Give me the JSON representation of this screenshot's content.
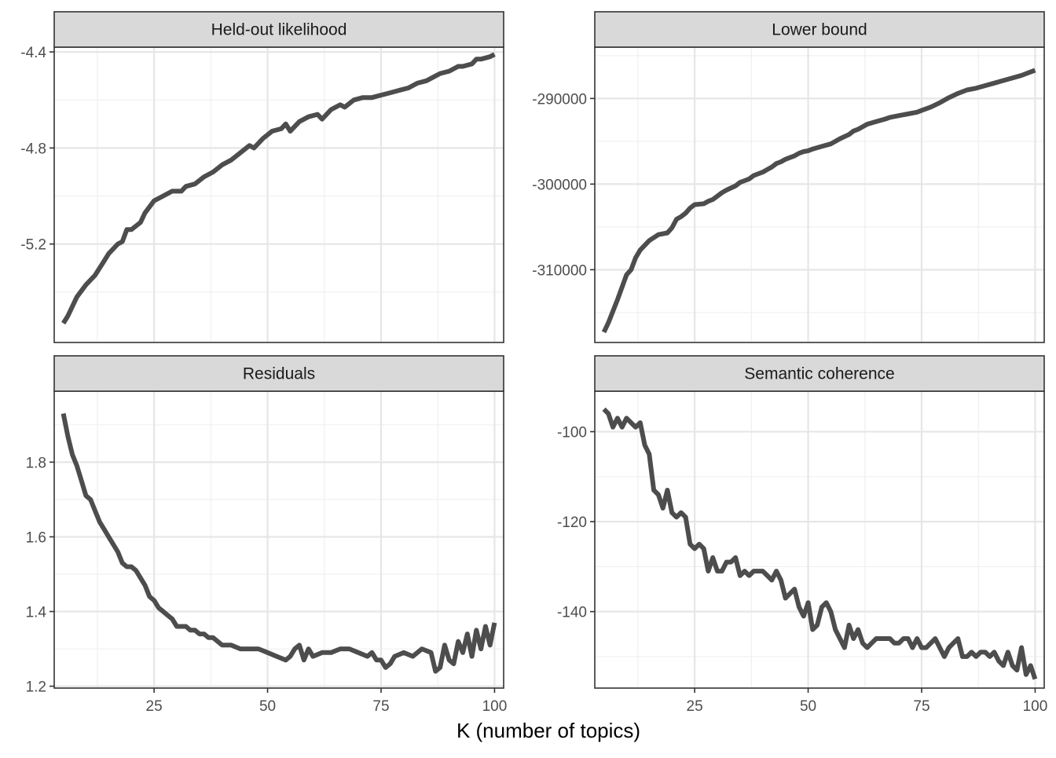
{
  "chart_data": {
    "type": "line",
    "facet_layout": "2x2",
    "xlabel": "K (number of topics)",
    "xlim": [
      3,
      102
    ],
    "x_ticks": [
      25,
      50,
      75,
      100
    ],
    "grid": true,
    "line_color": "#4d4d4d",
    "strip_fill": "#d9d9d9",
    "panels": [
      {
        "name": "Held-out likelihood",
        "ylim": [
          -5.61,
          -4.38
        ],
        "y_ticks": [
          -5.2,
          -4.8,
          -4.4
        ],
        "y_tick_labels": [
          "-5.2",
          "-4.8",
          "-4.4"
        ],
        "points": [
          [
            5,
            -5.53
          ],
          [
            6,
            -5.5
          ],
          [
            7,
            -5.46
          ],
          [
            8,
            -5.42
          ],
          [
            10,
            -5.37
          ],
          [
            12,
            -5.33
          ],
          [
            14,
            -5.27
          ],
          [
            15,
            -5.24
          ],
          [
            17,
            -5.2
          ],
          [
            18,
            -5.19
          ],
          [
            19,
            -5.14
          ],
          [
            20,
            -5.14
          ],
          [
            22,
            -5.11
          ],
          [
            23,
            -5.07
          ],
          [
            25,
            -5.02
          ],
          [
            27,
            -5.0
          ],
          [
            29,
            -4.98
          ],
          [
            31,
            -4.98
          ],
          [
            32,
            -4.96
          ],
          [
            34,
            -4.95
          ],
          [
            36,
            -4.92
          ],
          [
            38,
            -4.9
          ],
          [
            40,
            -4.87
          ],
          [
            42,
            -4.85
          ],
          [
            44,
            -4.82
          ],
          [
            46,
            -4.79
          ],
          [
            47,
            -4.8
          ],
          [
            49,
            -4.76
          ],
          [
            51,
            -4.73
          ],
          [
            53,
            -4.72
          ],
          [
            54,
            -4.7
          ],
          [
            55,
            -4.73
          ],
          [
            57,
            -4.69
          ],
          [
            59,
            -4.67
          ],
          [
            61,
            -4.66
          ],
          [
            62,
            -4.68
          ],
          [
            64,
            -4.64
          ],
          [
            66,
            -4.62
          ],
          [
            67,
            -4.63
          ],
          [
            69,
            -4.6
          ],
          [
            71,
            -4.59
          ],
          [
            73,
            -4.59
          ],
          [
            75,
            -4.58
          ],
          [
            77,
            -4.57
          ],
          [
            79,
            -4.56
          ],
          [
            81,
            -4.55
          ],
          [
            83,
            -4.53
          ],
          [
            85,
            -4.52
          ],
          [
            87,
            -4.5
          ],
          [
            88,
            -4.49
          ],
          [
            90,
            -4.48
          ],
          [
            92,
            -4.46
          ],
          [
            93,
            -4.46
          ],
          [
            95,
            -4.45
          ],
          [
            96,
            -4.43
          ],
          [
            97,
            -4.43
          ],
          [
            99,
            -4.42
          ],
          [
            100,
            -4.41
          ]
        ]
      },
      {
        "name": "Lower bound",
        "ylim": [
          -318500,
          -284000
        ],
        "y_ticks": [
          -310000,
          -300000,
          -290000
        ],
        "y_tick_labels": [
          "-310000",
          "-300000",
          "-290000"
        ],
        "points": [
          [
            5,
            -317300
          ],
          [
            6,
            -316200
          ],
          [
            8,
            -313500
          ],
          [
            10,
            -310600
          ],
          [
            11,
            -310000
          ],
          [
            12,
            -308600
          ],
          [
            13,
            -307700
          ],
          [
            15,
            -306600
          ],
          [
            17,
            -305900
          ],
          [
            19,
            -305700
          ],
          [
            20,
            -305100
          ],
          [
            21,
            -304100
          ],
          [
            22,
            -303800
          ],
          [
            23,
            -303400
          ],
          [
            24,
            -302800
          ],
          [
            25,
            -302400
          ],
          [
            27,
            -302300
          ],
          [
            28,
            -302000
          ],
          [
            29,
            -301800
          ],
          [
            31,
            -301000
          ],
          [
            32,
            -300700
          ],
          [
            34,
            -300200
          ],
          [
            35,
            -299800
          ],
          [
            36,
            -299600
          ],
          [
            37,
            -299400
          ],
          [
            38,
            -299000
          ],
          [
            40,
            -298600
          ],
          [
            41,
            -298300
          ],
          [
            42,
            -298000
          ],
          [
            43,
            -297600
          ],
          [
            44,
            -297400
          ],
          [
            45,
            -297100
          ],
          [
            46,
            -296900
          ],
          [
            47,
            -296700
          ],
          [
            48,
            -296400
          ],
          [
            49,
            -296200
          ],
          [
            50,
            -296100
          ],
          [
            51,
            -295900
          ],
          [
            53,
            -295600
          ],
          [
            55,
            -295300
          ],
          [
            57,
            -294700
          ],
          [
            59,
            -294200
          ],
          [
            60,
            -293800
          ],
          [
            61,
            -293600
          ],
          [
            62,
            -293300
          ],
          [
            63,
            -293000
          ],
          [
            65,
            -292700
          ],
          [
            67,
            -292400
          ],
          [
            68,
            -292200
          ],
          [
            70,
            -292000
          ],
          [
            72,
            -291800
          ],
          [
            74,
            -291600
          ],
          [
            75,
            -291400
          ],
          [
            77,
            -291000
          ],
          [
            79,
            -290500
          ],
          [
            81,
            -289900
          ],
          [
            83,
            -289400
          ],
          [
            85,
            -289000
          ],
          [
            87,
            -288800
          ],
          [
            89,
            -288500
          ],
          [
            91,
            -288200
          ],
          [
            93,
            -287900
          ],
          [
            95,
            -287600
          ],
          [
            97,
            -287300
          ],
          [
            99,
            -286900
          ],
          [
            100,
            -286700
          ]
        ]
      },
      {
        "name": "Residuals",
        "ylim": [
          1.195,
          1.99
        ],
        "y_ticks": [
          1.2,
          1.4,
          1.6,
          1.8
        ],
        "y_tick_labels": [
          "1.2",
          "1.4",
          "1.6",
          "1.8"
        ],
        "points": [
          [
            5,
            1.93
          ],
          [
            6,
            1.87
          ],
          [
            7,
            1.82
          ],
          [
            8,
            1.79
          ],
          [
            9,
            1.75
          ],
          [
            10,
            1.71
          ],
          [
            11,
            1.7
          ],
          [
            12,
            1.67
          ],
          [
            13,
            1.64
          ],
          [
            14,
            1.62
          ],
          [
            15,
            1.6
          ],
          [
            16,
            1.58
          ],
          [
            17,
            1.56
          ],
          [
            18,
            1.53
          ],
          [
            19,
            1.52
          ],
          [
            20,
            1.52
          ],
          [
            21,
            1.51
          ],
          [
            22,
            1.49
          ],
          [
            23,
            1.47
          ],
          [
            24,
            1.44
          ],
          [
            25,
            1.43
          ],
          [
            26,
            1.41
          ],
          [
            27,
            1.4
          ],
          [
            28,
            1.39
          ],
          [
            29,
            1.38
          ],
          [
            30,
            1.36
          ],
          [
            31,
            1.36
          ],
          [
            32,
            1.36
          ],
          [
            33,
            1.35
          ],
          [
            34,
            1.35
          ],
          [
            35,
            1.34
          ],
          [
            36,
            1.34
          ],
          [
            37,
            1.33
          ],
          [
            38,
            1.33
          ],
          [
            39,
            1.32
          ],
          [
            40,
            1.31
          ],
          [
            42,
            1.31
          ],
          [
            44,
            1.3
          ],
          [
            46,
            1.3
          ],
          [
            48,
            1.3
          ],
          [
            50,
            1.29
          ],
          [
            52,
            1.28
          ],
          [
            54,
            1.27
          ],
          [
            55,
            1.28
          ],
          [
            56,
            1.3
          ],
          [
            57,
            1.31
          ],
          [
            58,
            1.27
          ],
          [
            59,
            1.3
          ],
          [
            60,
            1.28
          ],
          [
            62,
            1.29
          ],
          [
            64,
            1.29
          ],
          [
            66,
            1.3
          ],
          [
            68,
            1.3
          ],
          [
            70,
            1.29
          ],
          [
            72,
            1.28
          ],
          [
            73,
            1.29
          ],
          [
            74,
            1.27
          ],
          [
            75,
            1.27
          ],
          [
            76,
            1.25
          ],
          [
            77,
            1.26
          ],
          [
            78,
            1.28
          ],
          [
            80,
            1.29
          ],
          [
            82,
            1.28
          ],
          [
            84,
            1.3
          ],
          [
            86,
            1.29
          ],
          [
            87,
            1.24
          ],
          [
            88,
            1.25
          ],
          [
            89,
            1.31
          ],
          [
            90,
            1.27
          ],
          [
            91,
            1.26
          ],
          [
            92,
            1.32
          ],
          [
            93,
            1.29
          ],
          [
            94,
            1.34
          ],
          [
            95,
            1.28
          ],
          [
            96,
            1.35
          ],
          [
            97,
            1.3
          ],
          [
            98,
            1.36
          ],
          [
            99,
            1.31
          ],
          [
            100,
            1.37
          ]
        ]
      },
      {
        "name": "Semantic coherence",
        "ylim": [
          -157,
          -91
        ],
        "y_ticks": [
          -140,
          -120,
          -100
        ],
        "y_tick_labels": [
          "-140",
          "-120",
          "-100"
        ],
        "points": [
          [
            5,
            -95
          ],
          [
            6,
            -96
          ],
          [
            7,
            -99
          ],
          [
            8,
            -97
          ],
          [
            9,
            -99
          ],
          [
            10,
            -97
          ],
          [
            11,
            -98
          ],
          [
            12,
            -99
          ],
          [
            13,
            -98
          ],
          [
            14,
            -103
          ],
          [
            15,
            -105
          ],
          [
            16,
            -113
          ],
          [
            17,
            -114
          ],
          [
            18,
            -117
          ],
          [
            19,
            -113
          ],
          [
            20,
            -118
          ],
          [
            21,
            -119
          ],
          [
            22,
            -118
          ],
          [
            23,
            -119
          ],
          [
            24,
            -125
          ],
          [
            25,
            -126
          ],
          [
            26,
            -125
          ],
          [
            27,
            -126
          ],
          [
            28,
            -131
          ],
          [
            29,
            -128
          ],
          [
            30,
            -131
          ],
          [
            31,
            -131
          ],
          [
            32,
            -129
          ],
          [
            33,
            -129
          ],
          [
            34,
            -128
          ],
          [
            35,
            -132
          ],
          [
            36,
            -131
          ],
          [
            37,
            -132
          ],
          [
            38,
            -131
          ],
          [
            39,
            -131
          ],
          [
            40,
            -131
          ],
          [
            41,
            -132
          ],
          [
            42,
            -133
          ],
          [
            43,
            -131
          ],
          [
            44,
            -133
          ],
          [
            45,
            -137
          ],
          [
            46,
            -136
          ],
          [
            47,
            -135
          ],
          [
            48,
            -139
          ],
          [
            49,
            -141
          ],
          [
            50,
            -138
          ],
          [
            51,
            -144
          ],
          [
            52,
            -143
          ],
          [
            53,
            -139
          ],
          [
            54,
            -138
          ],
          [
            55,
            -140
          ],
          [
            56,
            -144
          ],
          [
            57,
            -146
          ],
          [
            58,
            -148
          ],
          [
            59,
            -143
          ],
          [
            60,
            -146
          ],
          [
            61,
            -144
          ],
          [
            62,
            -147
          ],
          [
            63,
            -148
          ],
          [
            64,
            -147
          ],
          [
            65,
            -146
          ],
          [
            66,
            -146
          ],
          [
            67,
            -146
          ],
          [
            68,
            -146
          ],
          [
            69,
            -147
          ],
          [
            70,
            -147
          ],
          [
            71,
            -146
          ],
          [
            72,
            -146
          ],
          [
            73,
            -148
          ],
          [
            74,
            -146
          ],
          [
            75,
            -148
          ],
          [
            76,
            -148
          ],
          [
            77,
            -147
          ],
          [
            78,
            -146
          ],
          [
            79,
            -148
          ],
          [
            80,
            -150
          ],
          [
            81,
            -148
          ],
          [
            82,
            -147
          ],
          [
            83,
            -146
          ],
          [
            84,
            -150
          ],
          [
            85,
            -150
          ],
          [
            86,
            -149
          ],
          [
            87,
            -150
          ],
          [
            88,
            -149
          ],
          [
            89,
            -149
          ],
          [
            90,
            -150
          ],
          [
            91,
            -149
          ],
          [
            92,
            -151
          ],
          [
            93,
            -152
          ],
          [
            94,
            -149
          ],
          [
            95,
            -152
          ],
          [
            96,
            -153
          ],
          [
            97,
            -148
          ],
          [
            98,
            -154
          ],
          [
            99,
            -152
          ],
          [
            100,
            -155
          ]
        ]
      }
    ]
  }
}
